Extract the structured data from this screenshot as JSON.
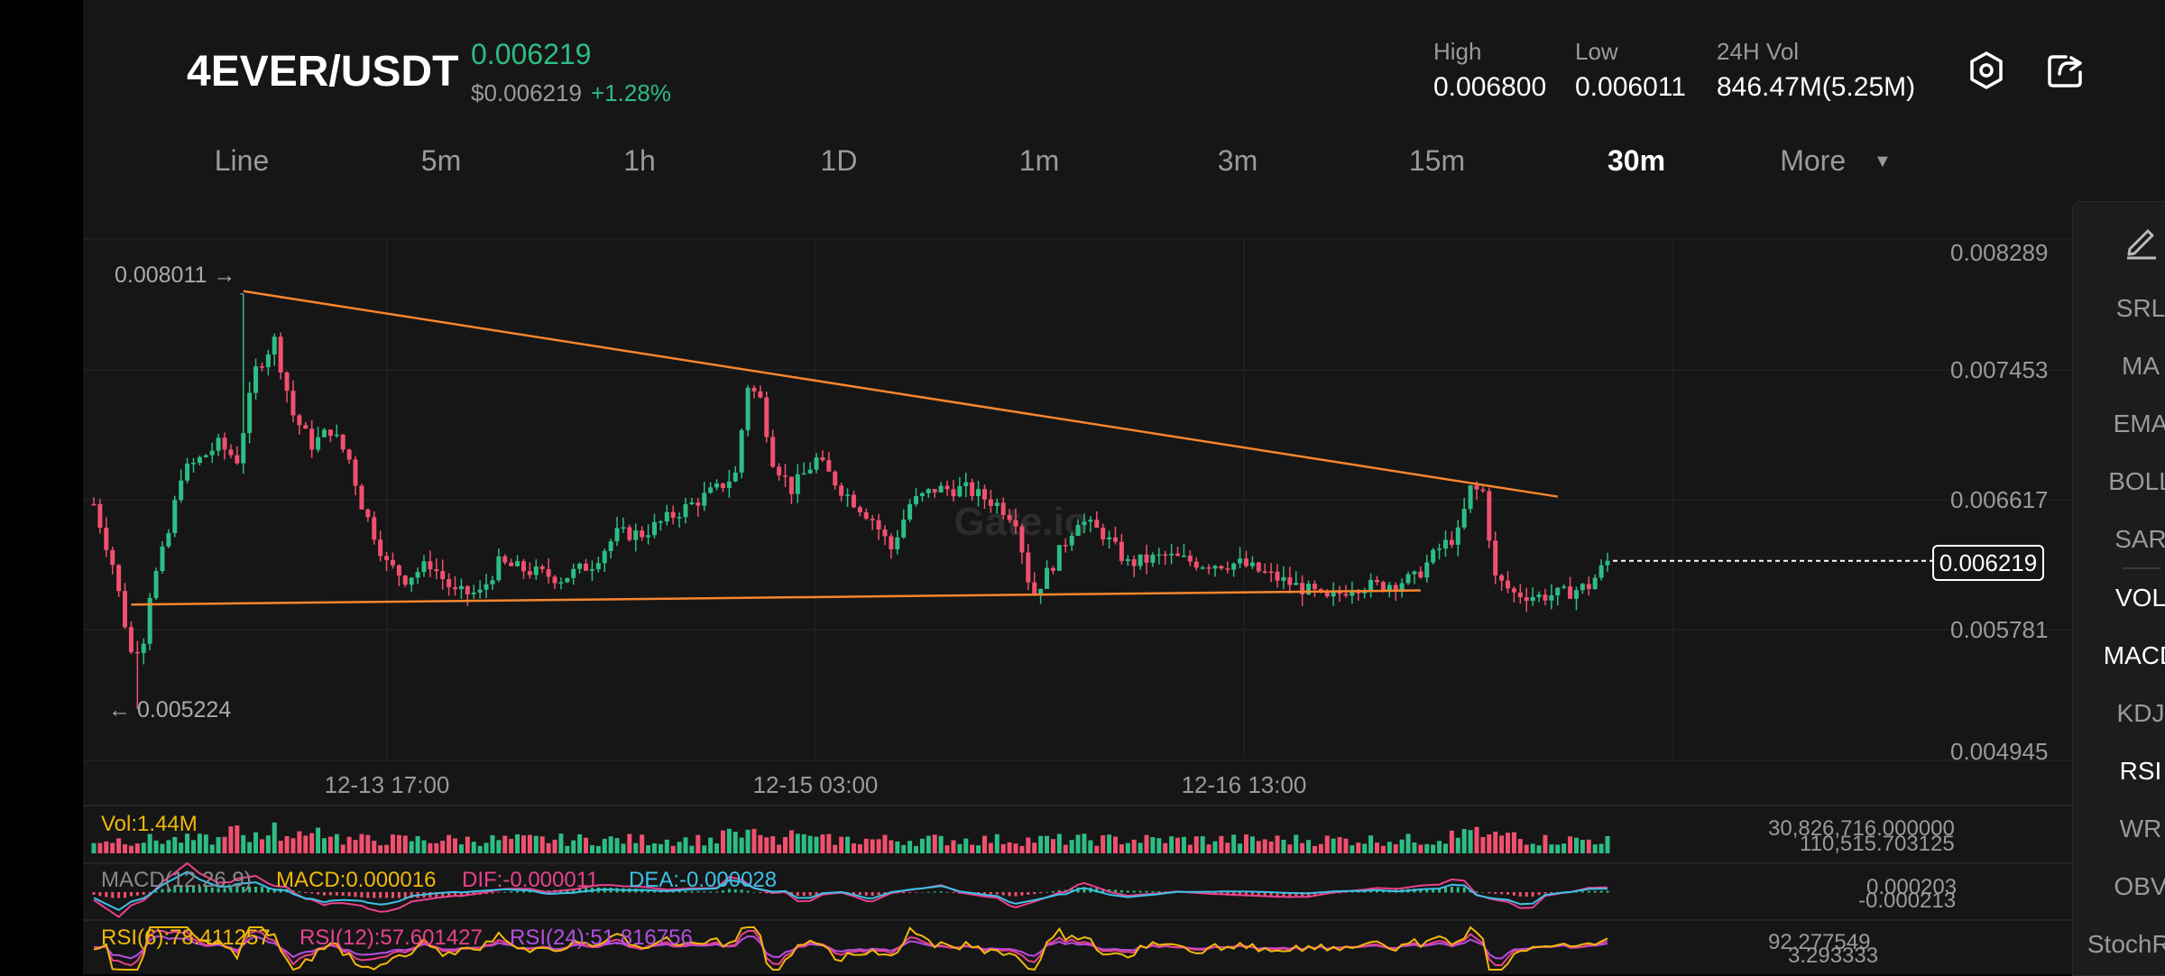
{
  "header": {
    "pair": "4EVER/USDT",
    "last_price": "0.006219",
    "usd_price": "$0.006219",
    "change": "+1.28%",
    "high_label": "High",
    "high_value": "0.006800",
    "low_label": "Low",
    "low_value": "0.006011",
    "vol_label": "24H Vol",
    "vol_value": "846.47M(5.25M)",
    "icons": [
      "settings-hex-icon",
      "share-icon"
    ]
  },
  "tabs": [
    "Line",
    "5m",
    "1h",
    "1D",
    "1m",
    "3m",
    "15m",
    "30m",
    "More"
  ],
  "active_tab": "30m",
  "sidebar": {
    "draw_icon": "pencil-icon",
    "indicators": [
      "SRL",
      "MA",
      "EMA",
      "BOLL",
      "SAR",
      "VOL",
      "MACD",
      "KDJ",
      "RSI",
      "WR",
      "OBV",
      "StochRSI"
    ],
    "active": [
      "VOL",
      "MACD",
      "RSI"
    ]
  },
  "main_chart": {
    "watermark": "Gate.io",
    "max_marker": "0.008011 →",
    "min_marker": "← 0.005224",
    "last_price_box": "0.006219",
    "y_labels": [
      "0.008289",
      "0.007453",
      "0.006617",
      "0.005781",
      "0.004945"
    ],
    "x_labels": [
      "12-13 17:00",
      "12-15 03:00",
      "12-16 13:00"
    ]
  },
  "vol_panel": {
    "label": "Vol:1.44M",
    "right_top": "30,826,716.000000",
    "right_bottom": "110,515.703125"
  },
  "macd_panel": {
    "label": "MACD(12,26,9)",
    "macd": "MACD:0.000016",
    "dif": "DIF:-0.000011",
    "dea": "DEA:-0.000028",
    "right_top": "0.000203",
    "right_bottom": "-0.000213"
  },
  "rsi_panel": {
    "rsi6": "RSI(6):78.411257",
    "rsi12": "RSI(12):57.601427",
    "rsi24": "RSI(24):51.816756",
    "right_top": "92.277549",
    "right_bottom": "3.293333"
  },
  "colors": {
    "up": "#2dbd85",
    "down": "#f0506e",
    "trendline": "#f7852e",
    "bg": "#161616"
  },
  "chart_data": {
    "type": "candlestick",
    "ylim": [
      0.004945,
      0.008289
    ],
    "y_ticks": [
      0.008289,
      0.007453,
      0.006617,
      0.005781,
      0.004945
    ],
    "x_ticks": [
      "12-13 17:00",
      "12-15 03:00",
      "12-16 13:00"
    ],
    "path_points": [
      [
        0,
        0.0066
      ],
      [
        3,
        0.0062
      ],
      [
        5,
        0.0058
      ],
      [
        7,
        0.0054
      ],
      [
        9,
        0.006
      ],
      [
        12,
        0.0064
      ],
      [
        14,
        0.0068
      ],
      [
        17,
        0.0069
      ],
      [
        20,
        0.007
      ],
      [
        23,
        0.0069
      ],
      [
        26,
        0.0075
      ],
      [
        29,
        0.0077
      ],
      [
        32,
        0.0072
      ],
      [
        35,
        0.007
      ],
      [
        38,
        0.0071
      ],
      [
        41,
        0.0069
      ],
      [
        43,
        0.0066
      ],
      [
        45,
        0.0064
      ],
      [
        47,
        0.0062
      ],
      [
        50,
        0.0061
      ],
      [
        54,
        0.0062
      ],
      [
        58,
        0.006
      ],
      [
        62,
        0.006
      ],
      [
        65,
        0.0062
      ],
      [
        70,
        0.00615
      ],
      [
        75,
        0.0061
      ],
      [
        80,
        0.0062
      ],
      [
        84,
        0.0064
      ],
      [
        88,
        0.0064
      ],
      [
        92,
        0.0065
      ],
      [
        96,
        0.0066
      ],
      [
        100,
        0.0067
      ],
      [
        103,
        0.0068
      ],
      [
        105,
        0.0074
      ],
      [
        107,
        0.0073
      ],
      [
        109,
        0.0069
      ],
      [
        112,
        0.0067
      ],
      [
        116,
        0.0069
      ],
      [
        120,
        0.0067
      ],
      [
        125,
        0.0065
      ],
      [
        128,
        0.0063
      ],
      [
        131,
        0.0066
      ],
      [
        135,
        0.0067
      ],
      [
        140,
        0.0067
      ],
      [
        145,
        0.0066
      ],
      [
        148,
        0.0065
      ],
      [
        150,
        0.0061
      ],
      [
        151,
        0.006
      ],
      [
        154,
        0.0062
      ],
      [
        158,
        0.0065
      ],
      [
        162,
        0.0064
      ],
      [
        166,
        0.0062
      ],
      [
        172,
        0.00625
      ],
      [
        178,
        0.0062
      ],
      [
        184,
        0.0062
      ],
      [
        190,
        0.0061
      ],
      [
        196,
        0.006
      ],
      [
        198,
        0.00595
      ],
      [
        202,
        0.00605
      ],
      [
        206,
        0.00605
      ],
      [
        212,
        0.0061
      ],
      [
        216,
        0.0063
      ],
      [
        219,
        0.0064
      ],
      [
        221,
        0.0067
      ],
      [
        223,
        0.00668
      ],
      [
        225,
        0.0061
      ],
      [
        228,
        0.006
      ],
      [
        232,
        0.00598
      ],
      [
        236,
        0.006
      ],
      [
        240,
        0.00605
      ],
      [
        243,
        0.006219
      ]
    ],
    "max": 0.008011,
    "min": 0.005224,
    "last": 0.006219,
    "trendlines": [
      {
        "from": [
          24,
          0.00803
        ],
        "to": [
          235,
          0.00665
        ]
      },
      {
        "from": [
          6,
          0.005925
        ],
        "to": [
          213,
          0.00602
        ]
      }
    ]
  }
}
